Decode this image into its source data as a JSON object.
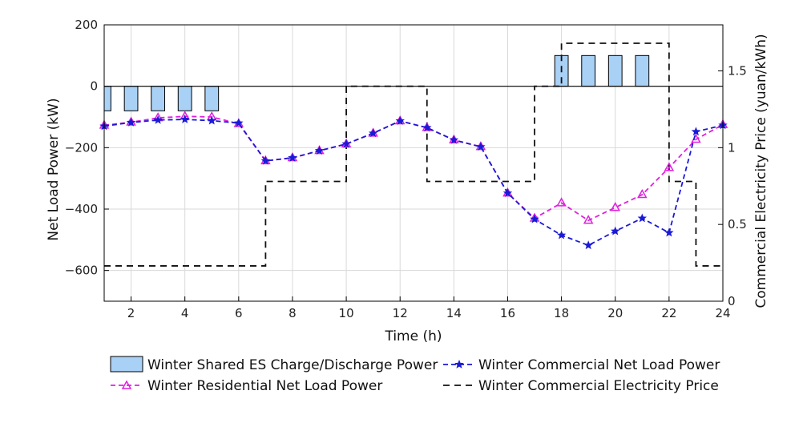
{
  "chart_data": {
    "type": "bar+line",
    "x": [
      1,
      2,
      3,
      4,
      5,
      6,
      7,
      8,
      9,
      10,
      11,
      12,
      13,
      14,
      15,
      16,
      17,
      18,
      19,
      20,
      21,
      22,
      23,
      24
    ],
    "xlabel": "Time (h)",
    "ylabel_left": "Net Load Power (kW)",
    "ylabel_right": "Commercial Electricity Price (yuan/kWh)",
    "xlim": [
      1,
      24
    ],
    "ylim_left": [
      -700,
      200
    ],
    "ylim_right": [
      0,
      1.8
    ],
    "xticks": [
      2,
      4,
      6,
      8,
      10,
      12,
      14,
      16,
      18,
      20,
      22,
      24
    ],
    "yticks_left": [
      200,
      0,
      -200,
      -400,
      -600
    ],
    "yticks_left_labels": [
      "200",
      "0",
      "−200",
      "−400",
      "−600"
    ],
    "yticks_right": [
      0,
      0.5,
      1,
      1.5
    ],
    "yticks_right_labels": [
      "0",
      "0.5",
      "1",
      "1.5"
    ],
    "grid": true,
    "series": [
      {
        "name": "Winter Shared ES Charge/Discharge Power",
        "kind": "bar",
        "axis": "left",
        "color": "#a9d1f5",
        "x": [
          1,
          2,
          3,
          4,
          5,
          18,
          19,
          20,
          21
        ],
        "values": [
          -80,
          -80,
          -80,
          -80,
          -80,
          100,
          100,
          100,
          100
        ]
      },
      {
        "name": "Winter Commercial Net Load Power",
        "kind": "line",
        "marker": "star",
        "axis": "left",
        "color": "#1a1ad6",
        "values": [
          -130,
          -118,
          -110,
          -108,
          -112,
          -120,
          -243,
          -233,
          -210,
          -188,
          -153,
          -113,
          -135,
          -175,
          -197,
          -348,
          -433,
          -485,
          -518,
          -472,
          -430,
          -477,
          -148,
          -127
        ]
      },
      {
        "name": "Winter Residential Net Load Power",
        "kind": "line",
        "marker": "triangle",
        "axis": "left",
        "color": "#e020e0",
        "values": [
          -127,
          -117,
          -103,
          -98,
          -100,
          -122,
          -243,
          -233,
          -210,
          -188,
          -153,
          -113,
          -135,
          -175,
          -197,
          -348,
          -430,
          -380,
          -437,
          -395,
          -353,
          -265,
          -173,
          -125
        ]
      },
      {
        "name": "Winter Commercial Electricity Price",
        "kind": "step",
        "axis": "right",
        "color": "#111111",
        "steps": [
          {
            "from": 1,
            "to": 7,
            "value": 0.23
          },
          {
            "from": 7,
            "to": 10,
            "value": 0.78
          },
          {
            "from": 10,
            "to": 13,
            "value": 1.4
          },
          {
            "from": 13,
            "to": 17,
            "value": 0.78
          },
          {
            "from": 17,
            "to": 18,
            "value": 1.4
          },
          {
            "from": 18,
            "to": 22,
            "value": 1.68
          },
          {
            "from": 22,
            "to": 23,
            "value": 0.78
          },
          {
            "from": 23,
            "to": 24,
            "value": 0.23
          }
        ]
      }
    ],
    "legend_location": "bottom",
    "legend": [
      "Winter Shared ES Charge/Discharge Power",
      "Winter Commercial Net Load Power",
      "Winter Residential Net Load Power",
      "Winter Commercial Electricity Price"
    ]
  }
}
